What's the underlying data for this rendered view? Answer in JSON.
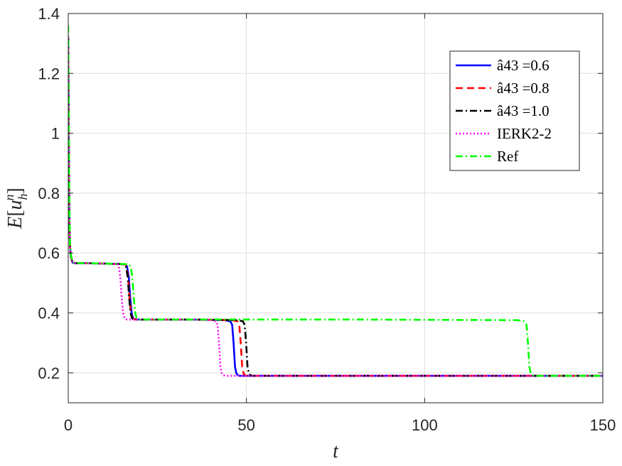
{
  "chart_data": {
    "type": "line",
    "xlabel": "t",
    "ylabel": "E[u_h^n]",
    "xlim": [
      0,
      150
    ],
    "ylim": [
      0.1,
      1.4
    ],
    "xticks": [
      "0",
      "50",
      "100",
      "150"
    ],
    "yticks": [
      "0.2",
      "0.4",
      "0.6",
      "0.8",
      "1",
      "1.2",
      "1.4"
    ],
    "grid": true,
    "legend_position": "top-right",
    "series": [
      {
        "name": "â43 =0.6",
        "color": "#0000ff",
        "dash": "solid",
        "x": [
          0,
          0.15,
          0.3,
          0.5,
          0.8,
          1.2,
          2,
          5,
          10,
          15,
          16,
          16.5,
          17,
          17.4,
          17.8,
          18.2,
          19,
          25,
          35,
          44,
          45.5,
          46,
          46.4,
          46.8,
          47.2,
          47.6,
          48.2,
          60,
          100,
          150
        ],
        "y": [
          1.32,
          0.95,
          0.72,
          0.62,
          0.585,
          0.568,
          0.566,
          0.566,
          0.565,
          0.563,
          0.562,
          0.555,
          0.52,
          0.45,
          0.4,
          0.382,
          0.378,
          0.378,
          0.378,
          0.376,
          0.372,
          0.36,
          0.3,
          0.22,
          0.198,
          0.192,
          0.19,
          0.19,
          0.19,
          0.19
        ]
      },
      {
        "name": "â43 =0.8",
        "color": "#ff0000",
        "dash": "dashed",
        "x": [
          0,
          0.15,
          0.3,
          0.5,
          0.8,
          1.2,
          2,
          5,
          10,
          15,
          16,
          16.3,
          16.8,
          17.2,
          17.6,
          18,
          18.8,
          25,
          35,
          46,
          47.5,
          48,
          48.4,
          48.8,
          49.2,
          49.6,
          50.2,
          60,
          100,
          150
        ],
        "y": [
          1.32,
          0.95,
          0.72,
          0.62,
          0.585,
          0.568,
          0.566,
          0.566,
          0.565,
          0.563,
          0.562,
          0.555,
          0.52,
          0.45,
          0.4,
          0.382,
          0.378,
          0.378,
          0.378,
          0.376,
          0.372,
          0.36,
          0.3,
          0.22,
          0.198,
          0.192,
          0.19,
          0.19,
          0.19,
          0.19
        ]
      },
      {
        "name": "â43 =1.0",
        "color": "#000000",
        "dash": "dashdot",
        "x": [
          0,
          0.15,
          0.3,
          0.5,
          0.8,
          1.2,
          2,
          5,
          10,
          15,
          15.8,
          16.2,
          16.7,
          17.1,
          17.5,
          17.9,
          18.6,
          25,
          35,
          47.5,
          49,
          49.5,
          49.9,
          50.3,
          50.7,
          51.1,
          51.7,
          60,
          100,
          150
        ],
        "y": [
          1.32,
          0.95,
          0.72,
          0.62,
          0.585,
          0.568,
          0.566,
          0.566,
          0.565,
          0.563,
          0.562,
          0.555,
          0.52,
          0.45,
          0.4,
          0.382,
          0.378,
          0.378,
          0.378,
          0.376,
          0.372,
          0.36,
          0.3,
          0.22,
          0.198,
          0.192,
          0.19,
          0.19,
          0.19,
          0.19
        ]
      },
      {
        "name": "IERK2-2",
        "color": "#ff00ff",
        "dash": "dotted",
        "x": [
          0,
          0.15,
          0.3,
          0.5,
          0.8,
          1.2,
          2,
          5,
          10,
          13,
          13.8,
          14.2,
          14.6,
          15,
          15.4,
          15.8,
          16.5,
          25,
          35,
          40.5,
          41.5,
          41.9,
          42.3,
          42.7,
          43.1,
          43.5,
          44.2,
          60,
          100,
          150
        ],
        "y": [
          1.32,
          0.95,
          0.72,
          0.62,
          0.585,
          0.568,
          0.566,
          0.566,
          0.565,
          0.563,
          0.562,
          0.555,
          0.52,
          0.45,
          0.4,
          0.382,
          0.378,
          0.378,
          0.378,
          0.376,
          0.372,
          0.36,
          0.3,
          0.22,
          0.198,
          0.192,
          0.19,
          0.19,
          0.19,
          0.19
        ]
      },
      {
        "name": "Ref",
        "color": "#00ff00",
        "dash": "dashdot",
        "x": [
          0,
          0.15,
          0.3,
          0.5,
          0.8,
          1.2,
          2,
          5,
          10,
          16,
          17,
          17.5,
          18,
          18.4,
          18.8,
          19.2,
          20,
          40,
          80,
          126,
          128,
          128.6,
          129,
          129.4,
          129.8,
          130.2,
          131,
          140,
          150
        ],
        "y": [
          1.36,
          1.0,
          0.75,
          0.63,
          0.59,
          0.57,
          0.567,
          0.566,
          0.565,
          0.563,
          0.562,
          0.555,
          0.52,
          0.45,
          0.4,
          0.382,
          0.378,
          0.378,
          0.378,
          0.376,
          0.372,
          0.36,
          0.3,
          0.22,
          0.198,
          0.192,
          0.19,
          0.19,
          0.19
        ]
      }
    ]
  }
}
